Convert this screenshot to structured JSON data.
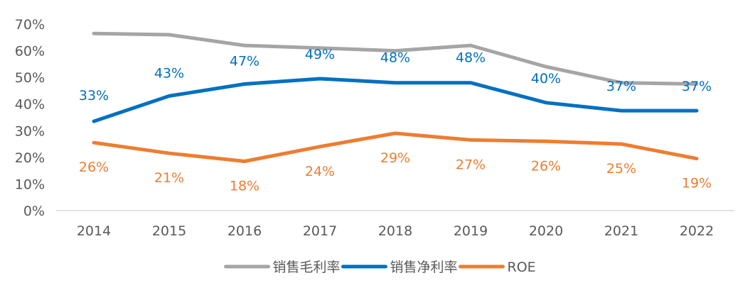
{
  "chart_data": {
    "type": "line",
    "categories": [
      "2014",
      "2015",
      "2016",
      "2017",
      "2018",
      "2019",
      "2020",
      "2021",
      "2022"
    ],
    "y_ticks": [
      "0%",
      "10%",
      "20%",
      "30%",
      "40%",
      "50%",
      "60%",
      "70%"
    ],
    "ylim": [
      0,
      70
    ],
    "grid": false,
    "legend_position": "bottom",
    "series": [
      {
        "name": "销售毛利率",
        "color": "#A5A5A5",
        "values": [
          66.5,
          66,
          62,
          61,
          60,
          62,
          54,
          48,
          47.5
        ],
        "show_labels": false
      },
      {
        "name": "销售净利率",
        "color": "#0070C0",
        "values": [
          33.5,
          43,
          47.5,
          49.5,
          48,
          48,
          40.5,
          37.5,
          37.5
        ],
        "labels": [
          "33%",
          "43%",
          "47%",
          "49%",
          "48%",
          "48%",
          "40%",
          "37%",
          "37%"
        ],
        "label_offsets": [
          37,
          33,
          33,
          35,
          36,
          36,
          35,
          35,
          35
        ],
        "show_labels": true
      },
      {
        "name": "ROE",
        "color": "#ED7D31",
        "values": [
          25.5,
          21.5,
          18.5,
          24,
          29,
          26.5,
          26,
          25,
          19.5
        ],
        "labels": [
          "26%",
          "21%",
          "18%",
          "24%",
          "29%",
          "27%",
          "26%",
          "25%",
          "19%"
        ],
        "label_offsets": [
          -34,
          -34,
          -34,
          -34,
          -34,
          -34,
          -34,
          -34,
          -34
        ],
        "show_labels": true
      }
    ]
  }
}
